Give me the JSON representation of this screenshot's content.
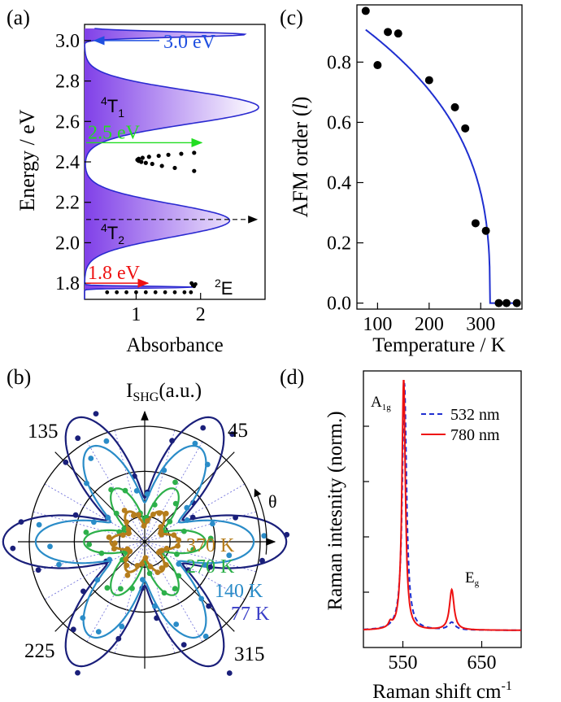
{
  "figure": {
    "panels": {
      "a": "(a)",
      "b": "(b)",
      "c": "(c)",
      "d": "(d)"
    }
  },
  "chart_data": [
    {
      "panel": "a",
      "type": "area",
      "xlabel": "Absorbance",
      "ylabel": "Energy / eV",
      "xlim": [
        0.2,
        3.0
      ],
      "ylim": [
        1.72,
        3.08
      ],
      "xticks": [
        "1",
        "2"
      ],
      "yticks": [
        "1.8",
        "2.0",
        "2.2",
        "2.4",
        "2.6",
        "2.8",
        "3.0"
      ],
      "series": [
        {
          "curve": "gaussian-sum",
          "peaks": [
            {
              "center": 3.03,
              "amplitude": 2.5,
              "width": 0.018
            },
            {
              "center": 2.67,
              "amplitude": 2.7,
              "width": 0.115
            },
            {
              "center": 2.11,
              "amplitude": 2.25,
              "width": 0.115
            },
            {
              "center": 1.78,
              "amplitude": 1.7,
              "width": 0.006
            }
          ],
          "color_from": "#8040e8",
          "color_to": "#ffffff",
          "line_color": "#2a2ad0"
        }
      ],
      "points_24": {
        "e": [
          2.355,
          2.37,
          2.38,
          2.39,
          2.395,
          2.4,
          2.405,
          2.41,
          2.415,
          2.42,
          2.425,
          2.43,
          2.435,
          2.44,
          2.445
        ],
        "x": [
          1.9,
          1.6,
          1.4,
          1.25,
          1.15,
          1.08,
          1.04,
          1.02,
          1.04,
          1.1,
          1.2,
          1.35,
          1.5,
          1.7,
          1.9
        ]
      },
      "points_18": {
        "e": [
          1.755,
          1.755,
          1.755,
          1.755,
          1.755,
          1.755,
          1.755,
          1.755,
          1.755,
          1.755,
          1.785,
          1.79,
          1.795,
          1.8
        ],
        "x": [
          0.55,
          0.7,
          0.85,
          1.0,
          1.15,
          1.3,
          1.45,
          1.6,
          1.75,
          1.85,
          1.9,
          1.88,
          1.92,
          1.86
        ]
      },
      "annotations": [
        {
          "text": "3.0 eV",
          "y": 3.0,
          "color": "#1f4fe0"
        },
        {
          "text": "2.5 eV",
          "y": 2.495,
          "color": "#22dd22"
        },
        {
          "text": "1.8 eV",
          "y": 1.8,
          "color": "#ee1111"
        }
      ],
      "dashed_arrow_y": 2.115,
      "states": {
        "t1": "4",
        "t1_base": "T",
        "t1_sub": "1",
        "t2": "4",
        "t2_base": "T",
        "t2_sub": "2",
        "e": "2",
        "e_base": "E"
      }
    },
    {
      "panel": "c",
      "type": "scatter",
      "xlabel": "Temperature / K",
      "ylabel_pre": "AFM order (",
      "ylabel_var": "l",
      "ylabel_post": ")",
      "xlim": [
        60,
        380
      ],
      "ylim": [
        -0.02,
        0.99
      ],
      "xticks": [
        "100",
        "200",
        "300"
      ],
      "yticks": [
        "0.0",
        "0.2",
        "0.4",
        "0.6",
        "0.8"
      ],
      "points": {
        "x": [
          77,
          100,
          120,
          140,
          200,
          250,
          270,
          290,
          310,
          335,
          350,
          370
        ],
        "y": [
          0.97,
          0.79,
          0.9,
          0.895,
          0.74,
          0.65,
          0.58,
          0.265,
          0.24,
          0.0,
          0.0,
          0.0
        ]
      },
      "fit": {
        "tc": 318,
        "amp": 1.0,
        "exponent": 0.35,
        "x_start": 77,
        "x_end": 370,
        "color": "#1f2fd0"
      }
    },
    {
      "panel": "b",
      "type": "polar",
      "title_base": "I",
      "title_sub": "SHG",
      "title_post": "(a.u.)",
      "angle_symbol": "θ",
      "angle_labels": [
        "45",
        "135",
        "225",
        "315"
      ],
      "series": [
        {
          "name": "370 K",
          "color": "#b57d1c",
          "a": 0.45,
          "b": 0.38
        },
        {
          "name": "270 K",
          "color": "#2db04a",
          "a": 1.05,
          "b": 0.45
        },
        {
          "name": "140 K",
          "color": "#2a8cc8",
          "a": 1.78,
          "b": 0.9
        },
        {
          "name": "77 K",
          "color": "#1a1f7a",
          "a": 2.5,
          "b": 1.0
        }
      ],
      "rmax": 2.65
    },
    {
      "panel": "d",
      "type": "line",
      "xlabel": "Raman shift cm",
      "xlabel_sup": "-1",
      "ylabel": "Raman intesnity (norm.)",
      "xlim": [
        500,
        700
      ],
      "ylim": [
        0,
        1.0
      ],
      "xticks": [
        "550",
        "650"
      ],
      "series": [
        {
          "name": "532 nm",
          "color": "#1f2fd0",
          "dash": true,
          "peaks": [
            {
              "c": 552,
              "h": 0.98,
              "w": 3.2
            },
            {
              "c": 612,
              "h": 0.03,
              "w": 5
            }
          ]
        },
        {
          "name": "780 nm",
          "color": "#ee1111",
          "dash": false,
          "peaks": [
            {
              "c": 551,
              "h": 1.0,
              "w": 2.6
            },
            {
              "c": 612,
              "h": 0.16,
              "w": 3.5
            },
            {
              "c": 534,
              "h": 0.02,
              "w": 2.5
            }
          ]
        }
      ],
      "annotations": [
        {
          "base": "A",
          "sub": "1g"
        },
        {
          "base": "E",
          "sub": "g"
        }
      ]
    }
  ]
}
